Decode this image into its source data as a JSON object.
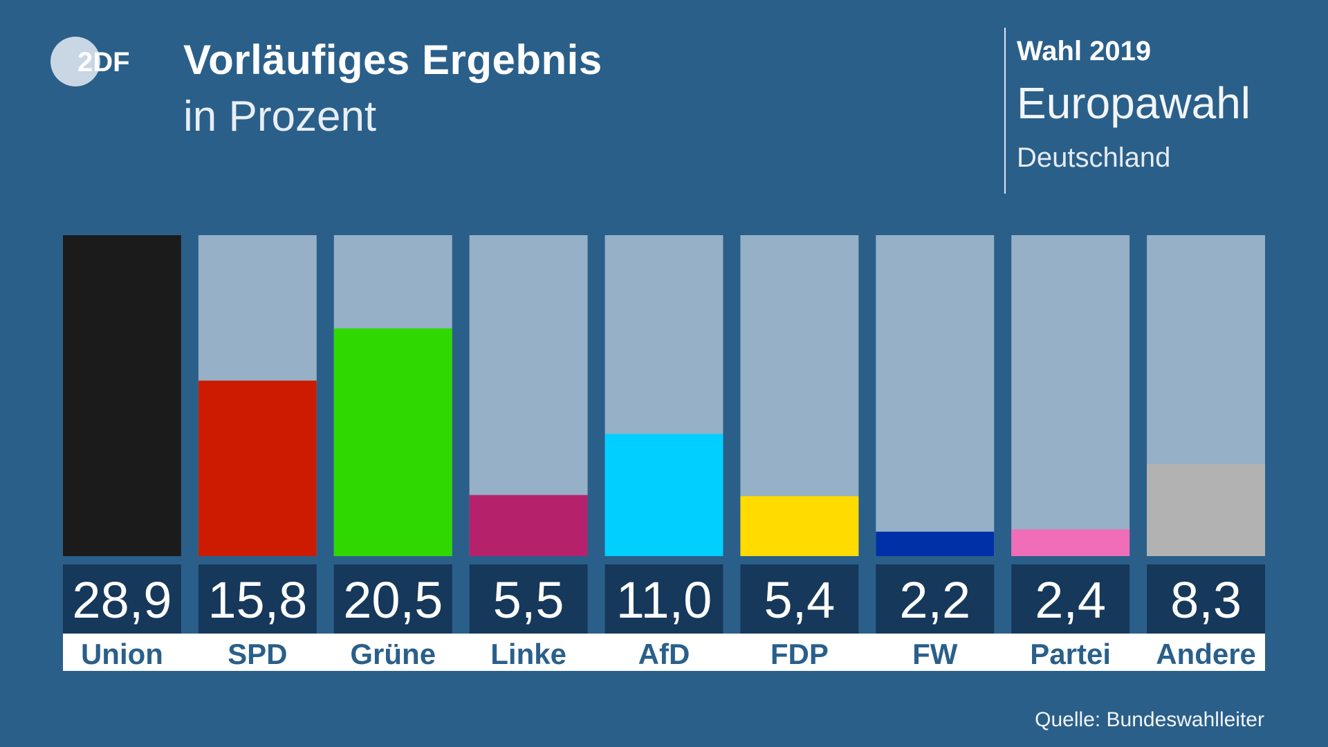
{
  "branding": {
    "logo_text": "2DF",
    "logo_color": "#c9d6e3"
  },
  "header": {
    "title": "Vorläufiges Ergebnis",
    "subtitle": "in Prozent"
  },
  "election": {
    "year_label": "Wahl 2019",
    "name": "Europawahl",
    "region": "Deutschland"
  },
  "source": "Quelle: Bundeswahlleiter",
  "colors": {
    "background": "#2a5f8a",
    "track": "#95b0c7",
    "value_box": "#16385a",
    "label_strip": "#ffffff",
    "label_text": "#2a5f8a"
  },
  "chart_data": {
    "type": "bar",
    "title": "Vorläufiges Ergebnis",
    "subtitle": "in Prozent",
    "ylim": [
      0,
      28.9
    ],
    "grid": false,
    "categories": [
      "Union",
      "SPD",
      "Grüne",
      "Linke",
      "AfD",
      "FDP",
      "FW",
      "Partei",
      "Andere"
    ],
    "values": [
      28.9,
      15.8,
      20.5,
      5.5,
      11.0,
      5.4,
      2.2,
      2.4,
      8.3
    ],
    "value_labels": [
      "28,9",
      "15,8",
      "20,5",
      "5,5",
      "11,0",
      "5,4",
      "2,2",
      "2,4",
      "8,3"
    ],
    "bar_colors": [
      "#1b1b1b",
      "#cc1b00",
      "#2fd900",
      "#b5226b",
      "#00cfff",
      "#ffdb00",
      "#0030a8",
      "#f06db8",
      "#b2b2b2"
    ]
  }
}
